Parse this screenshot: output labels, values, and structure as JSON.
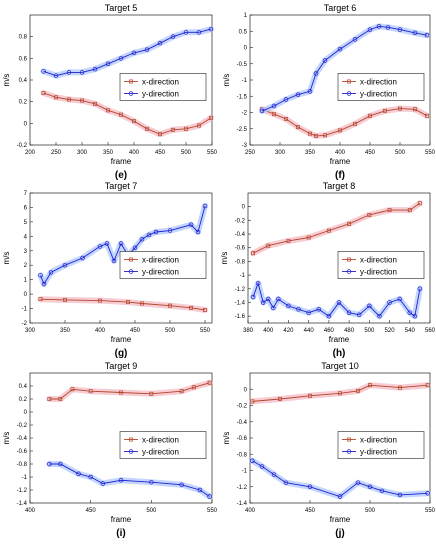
{
  "figure": {
    "panels": [
      {
        "id": "e",
        "panel_label": "(e)",
        "title": "Target 5",
        "xlabel": "frame",
        "ylabel": "m/s",
        "xlim": [
          200,
          550
        ],
        "ylim": [
          -0.2,
          1.0
        ],
        "xticks": [
          200,
          250,
          300,
          350,
          400,
          450,
          500,
          550
        ],
        "yticks": [
          -0.2,
          0,
          0.2,
          0.4,
          0.6,
          0.8
        ],
        "legend_pos": "right"
      },
      {
        "id": "f",
        "panel_label": "(f)",
        "title": "Target 6",
        "xlabel": "frame",
        "ylabel": "m/s",
        "xlim": [
          250,
          550
        ],
        "ylim": [
          -3,
          1
        ],
        "xticks": [
          250,
          300,
          350,
          400,
          450,
          500,
          550
        ],
        "yticks": [
          -3,
          -2.5,
          -2,
          -1.5,
          -1,
          -0.5,
          0,
          0.5,
          1
        ],
        "legend_pos": "right"
      },
      {
        "id": "g",
        "panel_label": "(g)",
        "title": "Target 7",
        "xlabel": "frame",
        "ylabel": "m/s",
        "xlim": [
          300,
          560
        ],
        "ylim": [
          -2,
          7
        ],
        "xticks": [
          300,
          350,
          400,
          450,
          500,
          550
        ],
        "yticks": [
          -2,
          -1,
          0,
          1,
          2,
          3,
          4,
          5,
          6,
          7
        ],
        "legend_pos": "right"
      },
      {
        "id": "h",
        "panel_label": "(h)",
        "title": "Target 8",
        "xlabel": "frame",
        "ylabel": "m/s",
        "xlim": [
          380,
          560
        ],
        "ylim": [
          -1.7,
          0.2
        ],
        "xticks": [
          380,
          400,
          420,
          440,
          460,
          480,
          500,
          520,
          540,
          560
        ],
        "yticks": [
          -1.6,
          -1.4,
          -1.2,
          -1,
          -0.8,
          -0.6,
          -0.4,
          -0.2,
          0
        ],
        "legend_pos": "right"
      },
      {
        "id": "i",
        "panel_label": "(i)",
        "title": "Target 9",
        "xlabel": "frame",
        "ylabel": "m/s",
        "xlim": [
          400,
          550
        ],
        "ylim": [
          -1.4,
          0.6
        ],
        "xticks": [
          400,
          450,
          500,
          550
        ],
        "yticks": [
          -1.4,
          -1.2,
          -1,
          -0.8,
          -0.6,
          -0.4,
          -0.2,
          0,
          0.2,
          0.4
        ],
        "legend_pos": "right"
      },
      {
        "id": "j",
        "panel_label": "(j)",
        "title": "Target 10",
        "xlabel": "frame",
        "ylabel": "m/s",
        "xlim": [
          400,
          550
        ],
        "ylim": [
          -1.4,
          0.2
        ],
        "xticks": [
          400,
          450,
          500,
          550
        ],
        "yticks": [
          -1.4,
          -1.2,
          -1,
          -0.8,
          -0.6,
          -0.4,
          -0.2,
          0
        ],
        "legend_pos": "right"
      }
    ]
  },
  "colors": {
    "x": "#b5452e",
    "y": "#2020d0",
    "x_band": "#f3b8c2",
    "y_band": "#aac4ff",
    "axis": "#222222"
  },
  "chart_data": [
    {
      "type": "line",
      "title": "Target 5",
      "xlabel": "frame",
      "ylabel": "m/s",
      "xlim": [
        200,
        550
      ],
      "ylim": [
        -0.2,
        1.0
      ],
      "series": [
        {
          "name": "x-direction",
          "x": [
            226,
            250,
            275,
            300,
            325,
            350,
            375,
            400,
            425,
            450,
            475,
            500,
            525,
            548
          ],
          "values": [
            0.28,
            0.24,
            0.22,
            0.21,
            0.18,
            0.12,
            0.08,
            0.02,
            -0.05,
            -0.1,
            -0.06,
            -0.05,
            -0.02,
            0.05
          ]
        },
        {
          "name": "y-direction",
          "x": [
            226,
            250,
            275,
            300,
            325,
            350,
            375,
            400,
            425,
            450,
            475,
            500,
            525,
            548
          ],
          "values": [
            0.48,
            0.44,
            0.47,
            0.47,
            0.5,
            0.55,
            0.6,
            0.65,
            0.68,
            0.74,
            0.8,
            0.84,
            0.84,
            0.87
          ]
        }
      ]
    },
    {
      "type": "line",
      "title": "Target 6",
      "xlabel": "frame",
      "ylabel": "m/s",
      "xlim": [
        250,
        550
      ],
      "ylim": [
        -3,
        1
      ],
      "series": [
        {
          "name": "x-direction",
          "x": [
            270,
            290,
            310,
            330,
            350,
            360,
            375,
            400,
            425,
            450,
            475,
            500,
            525,
            545
          ],
          "values": [
            -1.9,
            -2.05,
            -2.2,
            -2.45,
            -2.65,
            -2.72,
            -2.7,
            -2.55,
            -2.35,
            -2.1,
            -1.95,
            -1.88,
            -1.9,
            -2.1
          ]
        },
        {
          "name": "y-direction",
          "x": [
            270,
            290,
            310,
            330,
            350,
            360,
            375,
            400,
            425,
            450,
            465,
            480,
            500,
            525,
            545
          ],
          "values": [
            -1.95,
            -1.8,
            -1.6,
            -1.45,
            -1.35,
            -0.8,
            -0.4,
            -0.05,
            0.25,
            0.55,
            0.65,
            0.62,
            0.55,
            0.45,
            0.38
          ]
        }
      ]
    },
    {
      "type": "line",
      "title": "Target 7",
      "xlabel": "frame",
      "ylabel": "m/s",
      "xlim": [
        300,
        560
      ],
      "ylim": [
        -2,
        7
      ],
      "series": [
        {
          "name": "x-direction",
          "x": [
            315,
            350,
            400,
            440,
            460,
            500,
            530,
            550
          ],
          "values": [
            -0.35,
            -0.4,
            -0.45,
            -0.55,
            -0.65,
            -0.8,
            -0.95,
            -1.1
          ]
        },
        {
          "name": "y-direction",
          "x": [
            315,
            320,
            330,
            350,
            375,
            400,
            410,
            420,
            430,
            440,
            450,
            460,
            470,
            480,
            500,
            530,
            540,
            550
          ],
          "values": [
            1.3,
            0.7,
            1.5,
            2.0,
            2.5,
            3.3,
            3.5,
            2.3,
            3.5,
            2.7,
            3.2,
            3.8,
            4.1,
            4.3,
            4.4,
            4.8,
            4.3,
            6.1
          ]
        }
      ]
    },
    {
      "type": "line",
      "title": "Target 8",
      "xlabel": "frame",
      "ylabel": "m/s",
      "xlim": [
        380,
        560
      ],
      "ylim": [
        -1.7,
        0.2
      ],
      "series": [
        {
          "name": "x-direction",
          "x": [
            385,
            400,
            420,
            440,
            460,
            480,
            500,
            520,
            540,
            550
          ],
          "values": [
            -0.68,
            -0.57,
            -0.5,
            -0.45,
            -0.35,
            -0.25,
            -0.12,
            -0.05,
            -0.05,
            0.05
          ]
        },
        {
          "name": "y-direction",
          "x": [
            385,
            390,
            395,
            400,
            405,
            410,
            420,
            430,
            440,
            450,
            460,
            470,
            480,
            490,
            500,
            510,
            520,
            530,
            540,
            545,
            550
          ],
          "values": [
            -1.32,
            -1.12,
            -1.4,
            -1.35,
            -1.48,
            -1.35,
            -1.45,
            -1.5,
            -1.55,
            -1.5,
            -1.6,
            -1.4,
            -1.55,
            -1.58,
            -1.45,
            -1.6,
            -1.4,
            -1.35,
            -1.55,
            -1.6,
            -1.2
          ]
        }
      ]
    },
    {
      "type": "line",
      "title": "Target 9",
      "xlabel": "frame",
      "ylabel": "m/s",
      "xlim": [
        400,
        550
      ],
      "ylim": [
        -1.4,
        0.6
      ],
      "series": [
        {
          "name": "x-direction",
          "x": [
            416,
            425,
            435,
            450,
            475,
            500,
            525,
            535,
            548
          ],
          "values": [
            0.2,
            0.2,
            0.35,
            0.32,
            0.3,
            0.28,
            0.32,
            0.38,
            0.45
          ]
        },
        {
          "name": "y-direction",
          "x": [
            416,
            425,
            440,
            450,
            460,
            475,
            500,
            525,
            540,
            548
          ],
          "values": [
            -0.8,
            -0.8,
            -0.95,
            -1.0,
            -1.1,
            -1.05,
            -1.08,
            -1.12,
            -1.2,
            -1.3
          ]
        }
      ]
    },
    {
      "type": "line",
      "title": "Target 10",
      "xlabel": "frame",
      "ylabel": "m/s",
      "xlim": [
        400,
        550
      ],
      "ylim": [
        -1.4,
        0.2
      ],
      "series": [
        {
          "name": "x-direction",
          "x": [
            402,
            425,
            450,
            475,
            490,
            500,
            525,
            548
          ],
          "values": [
            -0.15,
            -0.12,
            -0.08,
            -0.05,
            -0.02,
            0.05,
            0.02,
            0.05
          ]
        },
        {
          "name": "y-direction",
          "x": [
            402,
            410,
            420,
            430,
            450,
            475,
            490,
            500,
            510,
            525,
            548
          ],
          "values": [
            -0.88,
            -0.95,
            -1.05,
            -1.15,
            -1.2,
            -1.32,
            -1.15,
            -1.2,
            -1.25,
            -1.3,
            -1.28
          ]
        }
      ]
    }
  ]
}
